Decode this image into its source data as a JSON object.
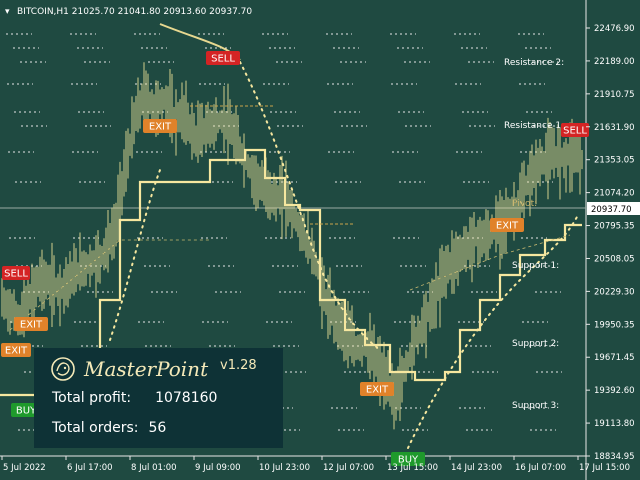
{
  "symbol_info": "BITCOIN,H1  21025.70 21041.80 20913.60 20937.70",
  "symbol": "BITCOIN,H1",
  "ohlc": {
    "open": "21025.70",
    "high": "21041.80",
    "low": "20913.60",
    "close": "20937.70"
  },
  "price_axis": [
    "22476.90",
    "22189.00",
    "21910.75",
    "21631.90",
    "21353.05",
    "21074.20",
    "20795.35",
    "20508.05",
    "20229.30",
    "19950.35",
    "19671.45",
    "19392.60",
    "19113.80",
    "18834.95"
  ],
  "current_price": "20937.70",
  "time_axis": [
    "5 Jul 2022",
    "6 Jul 17:00",
    "8 Jul 01:00",
    "9 Jul 09:00",
    "10 Jul 23:00",
    "12 Jul 07:00",
    "13 Jul 15:00",
    "14 Jul 23:00",
    "16 Jul 07:00",
    "17 Jul 15:00"
  ],
  "levels": {
    "resistance2": "Resistance 2:",
    "resistance1": "Resistance 1:",
    "pivot": "Pivot:",
    "support1": "Support 1:",
    "support2": "Support 2:",
    "support3": "Support 3:"
  },
  "signals": {
    "sell": "SELL",
    "buy": "BUY",
    "exit": "EXIT"
  },
  "panel": {
    "brand": "MasterPoint",
    "version": "v1.28",
    "profit_label": "Total profit:",
    "profit_value": "1078160",
    "orders_label": "Total orders:",
    "orders_value": "56"
  },
  "colors": {
    "background": "#1f4a41",
    "candles": "#efe49a",
    "sell": "#d42424",
    "buy": "#1f9a2c",
    "exit": "#e0822a",
    "panel": "#0e3236",
    "price_tag": "#ffffff"
  }
}
